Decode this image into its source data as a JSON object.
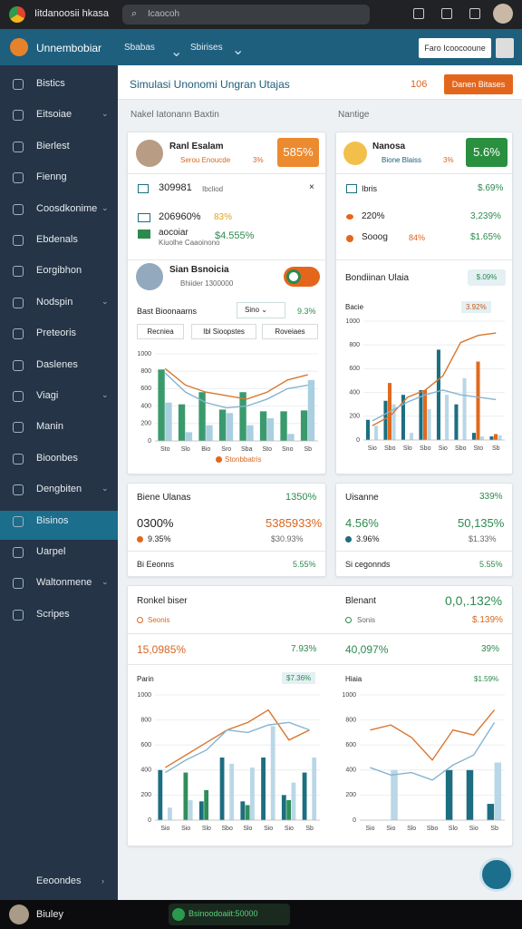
{
  "browser": {
    "tab_title": "Iitdanoosii hkasa",
    "search": "Icaocoh"
  },
  "app": {
    "name": "Unnembobiar",
    "nav": [
      "Sbabas",
      "Sbirises"
    ],
    "button": "Faro Icoocooune"
  },
  "sidebar": {
    "items": [
      "Bistics",
      "Eitsoiae",
      "Bierlest",
      "Fienng",
      "Coosdkonime",
      "Ebdenals",
      "Eorgibhon",
      "Nodspin",
      "Preteoris",
      "Daslenes",
      "Viagi",
      "Manin",
      "Bioonbes",
      "Dengbiten",
      "Bisinos",
      "Uarpel",
      "Waltonmene",
      "Scripes"
    ],
    "bottom": "Eeoondes"
  },
  "page": {
    "title": "Simulasi Unonomi Ungran Utajas",
    "count": "106",
    "button": "Danen Bitases",
    "sections": [
      "Nakel Iatonann Baxtin",
      "Nantige"
    ]
  },
  "card_a": {
    "name": "Ranl Esalam",
    "sub": "Serou Enoucde",
    "sub_value": "3%",
    "badge": "585%",
    "rows": [
      [
        "309981",
        "Ibcliod"
      ],
      [
        "206960%",
        "83%"
      ],
      [
        "aocoiar",
        "$4.555%",
        "Kiuolhe Caaoinono"
      ]
    ],
    "name2": "Sian Bsnoicia",
    "sub2": "Bhiider 1300000",
    "filter_label": "Bast Bioonaarns",
    "filter_select": "Sino",
    "filter_value": "9.3%",
    "buttons": [
      "Recniea",
      "Ibl Sioopstes",
      "Roveiaes"
    ],
    "legend": "Stonbbatris"
  },
  "card_b": {
    "name": "Nanosa",
    "sub": "Bione Blaiss",
    "sub_value": "3%",
    "badge": "5.6%",
    "rows": [
      [
        "Ibris",
        "$.69%"
      ],
      [
        "220%",
        "3,239%"
      ],
      [
        "Sooog",
        "84%",
        "$1.65%"
      ]
    ],
    "heading": "Bondiinan Ulaia",
    "chip": "$.09%",
    "chart_label": "Bacie",
    "chart_badge": "3.92%"
  },
  "card_c": {
    "title": "Biene Ulanas",
    "title_value": "1350%",
    "big": "0300%",
    "big_value": "5385933%",
    "small": "9.35%",
    "small_value": "$30.93%",
    "footer": "Bi Eeonns",
    "footer_value": "5.55%"
  },
  "card_d": {
    "title": "Uisanne",
    "title_value": "339%",
    "big": "4.56%",
    "big_value": "50,135%",
    "small": "3.96%",
    "small_value": "$1.33%",
    "footer": "Si cegonnds",
    "footer_value": "5.55%"
  },
  "card_e": {
    "left": {
      "title": "Ronkel biser",
      "sub": "Seonis",
      "big": "15,0985%",
      "big_value": "7.93%",
      "chart_label": "Parin",
      "chart_badge": "$7.36%"
    },
    "right": {
      "title": "Blenant",
      "title_value": "0,0,.132%",
      "sub": "Sonis",
      "sub_value": "$.139%",
      "big": "40,097%",
      "big_value": "39%",
      "chart_label": "Hiaia",
      "chart_badge": "$1.59%"
    }
  },
  "charts": [
    {
      "type": "bar-line",
      "ylim": [
        0,
        1000
      ],
      "yticks": [
        0,
        200,
        400,
        600,
        800,
        1000
      ],
      "categories": [
        "Sto",
        "Slo",
        "Bio",
        "Sro",
        "Sba",
        "Sto",
        "Sno",
        "Sb"
      ],
      "series": [
        {
          "kind": "bar",
          "color": "#3a9a6e",
          "values": [
            820,
            420,
            560,
            360,
            560,
            340,
            340,
            350
          ]
        },
        {
          "kind": "bar",
          "color": "#a9cfe0",
          "values": [
            440,
            100,
            180,
            320,
            180,
            260,
            80,
            700
          ]
        },
        {
          "kind": "line",
          "color": "#d9772f",
          "values": [
            830,
            640,
            560,
            520,
            480,
            560,
            700,
            760
          ]
        },
        {
          "kind": "line",
          "color": "#86b4cf",
          "values": [
            780,
            560,
            440,
            380,
            400,
            480,
            600,
            640
          ]
        }
      ]
    },
    {
      "type": "bar-line",
      "ylim": [
        0,
        1000
      ],
      "yticks": [
        0,
        200,
        400,
        600,
        800,
        1000
      ],
      "categories": [
        "Sio",
        "Sbo",
        "Slo",
        "Sbo",
        "Sio",
        "Sbo",
        "Sto",
        "Sb"
      ],
      "series": [
        {
          "kind": "bar",
          "color": "#1c6e80",
          "values": [
            170,
            330,
            380,
            420,
            760,
            300,
            60,
            30
          ]
        },
        {
          "kind": "bar",
          "color": "#e06a1e",
          "values": [
            0,
            480,
            0,
            420,
            0,
            0,
            660,
            50
          ]
        },
        {
          "kind": "bar",
          "color": "#b9d7e6",
          "values": [
            120,
            300,
            60,
            260,
            380,
            520,
            30,
            40
          ]
        },
        {
          "kind": "line",
          "color": "#d9772f",
          "values": [
            120,
            200,
            360,
            420,
            540,
            820,
            880,
            900
          ]
        },
        {
          "kind": "line",
          "color": "#86b4cf",
          "values": [
            160,
            240,
            320,
            380,
            420,
            380,
            360,
            340
          ]
        }
      ]
    },
    {
      "type": "bar-line",
      "ylim": [
        0,
        1000
      ],
      "yticks": [
        0,
        200,
        400,
        600,
        800,
        1000
      ],
      "categories": [
        "Sio",
        "Sio",
        "Slo",
        "Sbo",
        "Slo",
        "Sio",
        "Sio",
        "Sb"
      ],
      "series": [
        {
          "kind": "bar",
          "color": "#1c6e80",
          "values": [
            400,
            0,
            150,
            500,
            150,
            500,
            200,
            380
          ]
        },
        {
          "kind": "bar",
          "color": "#2f8e5a",
          "values": [
            0,
            380,
            240,
            0,
            120,
            0,
            160,
            0
          ]
        },
        {
          "kind": "bar",
          "color": "#b9d7e6",
          "values": [
            100,
            160,
            0,
            450,
            420,
            750,
            300,
            500
          ]
        },
        {
          "kind": "line",
          "color": "#d9772f",
          "values": [
            420,
            520,
            620,
            720,
            780,
            880,
            640,
            720
          ]
        },
        {
          "kind": "line",
          "color": "#86b4cf",
          "values": [
            380,
            480,
            560,
            720,
            700,
            760,
            780,
            720
          ]
        }
      ]
    },
    {
      "type": "bar-line",
      "ylim": [
        0,
        1000
      ],
      "yticks": [
        0,
        200,
        400,
        600,
        800,
        1000
      ],
      "categories": [
        "Sio",
        "Sio",
        "Slo",
        "Sbo",
        "Slo",
        "Sio",
        "Sb"
      ],
      "series": [
        {
          "kind": "bar",
          "color": "#1c6e80",
          "values": [
            0,
            0,
            0,
            0,
            400,
            400,
            130
          ]
        },
        {
          "kind": "bar",
          "color": "#b9d7e6",
          "values": [
            0,
            400,
            0,
            0,
            0,
            0,
            460
          ]
        },
        {
          "kind": "line",
          "color": "#d9772f",
          "values": [
            720,
            760,
            660,
            480,
            720,
            680,
            880
          ]
        },
        {
          "kind": "line",
          "color": "#86b4cf",
          "values": [
            420,
            360,
            380,
            320,
            440,
            520,
            780
          ]
        }
      ]
    }
  ],
  "taskbar": {
    "user": "Biuley",
    "status": "Bsinoodoaiit:50000"
  }
}
